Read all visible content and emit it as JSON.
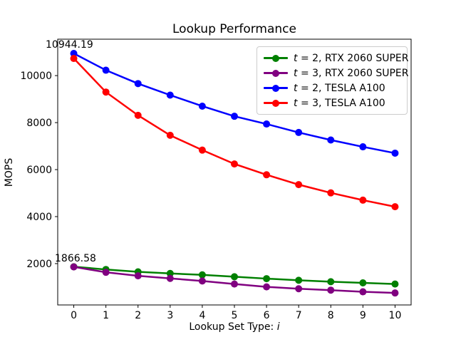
{
  "chart_data": {
    "type": "line",
    "title": "Lookup Performance",
    "xlabel_text": "Lookup Set Type: ",
    "xlabel_italic": "i",
    "ylabel": "MOPS",
    "x": [
      0,
      1,
      2,
      3,
      4,
      5,
      6,
      7,
      8,
      9,
      10
    ],
    "xticks": [
      "0",
      "1",
      "2",
      "3",
      "4",
      "5",
      "6",
      "7",
      "8",
      "9",
      "10"
    ],
    "yticks": [
      2000,
      4000,
      6000,
      8000,
      10000
    ],
    "xlim": [
      -0.5,
      10.5
    ],
    "ylim": [
      240,
      11550
    ],
    "grid": false,
    "legend_position": "upper right",
    "series": [
      {
        "label_var": "t",
        "label_rest": " = 2, RTX 2060 SUPER",
        "color": "#008000",
        "values": [
          1866.58,
          1750,
          1650,
          1580,
          1520,
          1440,
          1360,
          1290,
          1230,
          1180,
          1130
        ]
      },
      {
        "label_var": "t",
        "label_rest": " = 3, RTX 2060 SUPER",
        "color": "#800080",
        "values": [
          1860,
          1630,
          1480,
          1370,
          1260,
          1130,
          1010,
          930,
          870,
          800,
          750
        ]
      },
      {
        "label_var": "t",
        "label_rest": " = 2, TESLA A100",
        "color": "#0000ff",
        "values": [
          10944.19,
          10230,
          9660,
          9170,
          8700,
          8270,
          7940,
          7580,
          7260,
          6970,
          6700
        ]
      },
      {
        "label_var": "t",
        "label_rest": " = 3, TESLA A100",
        "color": "#ff0000",
        "values": [
          10730,
          9300,
          8310,
          7460,
          6830,
          6240,
          5780,
          5360,
          5010,
          4700,
          4420
        ]
      }
    ],
    "annotations": [
      {
        "text": "10944.19",
        "x": 0,
        "y": 10944.19
      },
      {
        "text": "1866.58",
        "x": 0,
        "y": 1866.58
      }
    ]
  }
}
